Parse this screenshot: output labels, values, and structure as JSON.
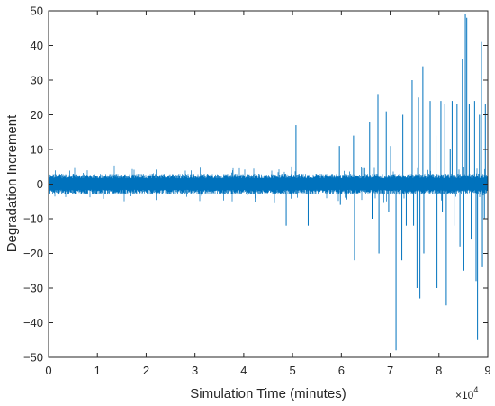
{
  "chart_data": {
    "type": "line",
    "xlabel": "Simulation Time (minutes)",
    "ylabel": "Degradation Increment",
    "xlim": [
      0,
      90000
    ],
    "ylim": [
      -50,
      50
    ],
    "x_ticks": [
      0,
      10000,
      20000,
      30000,
      40000,
      50000,
      60000,
      70000,
      80000,
      90000
    ],
    "x_tick_labels": [
      "0",
      "1",
      "2",
      "3",
      "4",
      "5",
      "6",
      "7",
      "8",
      "9"
    ],
    "x_exponent_label": "×10",
    "x_exponent_power": "4",
    "y_ticks": [
      -50,
      -40,
      -30,
      -20,
      -10,
      0,
      10,
      20,
      30,
      40,
      50
    ],
    "y_tick_labels": [
      "−50",
      "−40",
      "−30",
      "−20",
      "−10",
      "0",
      "10",
      "20",
      "30",
      "40",
      "50"
    ],
    "grid": false,
    "line_color": "#0072BD",
    "baseline_noise": {
      "x_range": [
        0,
        90000
      ],
      "typical_min": -3,
      "typical_max": 3
    },
    "spikes": [
      {
        "x": 48700,
        "y": -12
      },
      {
        "x": 50700,
        "y": 17
      },
      {
        "x": 53200,
        "y": -12
      },
      {
        "x": 59600,
        "y": 11
      },
      {
        "x": 59800,
        "y": -6
      },
      {
        "x": 62500,
        "y": 14
      },
      {
        "x": 62700,
        "y": -22
      },
      {
        "x": 65800,
        "y": 18
      },
      {
        "x": 66300,
        "y": -10
      },
      {
        "x": 67500,
        "y": 26
      },
      {
        "x": 67700,
        "y": -20
      },
      {
        "x": 69200,
        "y": 21
      },
      {
        "x": 69700,
        "y": -8
      },
      {
        "x": 70100,
        "y": 11
      },
      {
        "x": 71200,
        "y": -48
      },
      {
        "x": 72400,
        "y": -22
      },
      {
        "x": 72600,
        "y": 20
      },
      {
        "x": 73300,
        "y": -12
      },
      {
        "x": 74500,
        "y": 30
      },
      {
        "x": 74800,
        "y": -12
      },
      {
        "x": 75500,
        "y": -30
      },
      {
        "x": 75800,
        "y": 25
      },
      {
        "x": 76100,
        "y": -33
      },
      {
        "x": 76700,
        "y": 34
      },
      {
        "x": 76900,
        "y": -20
      },
      {
        "x": 78200,
        "y": 24
      },
      {
        "x": 79400,
        "y": 14
      },
      {
        "x": 79600,
        "y": -30
      },
      {
        "x": 80400,
        "y": 24
      },
      {
        "x": 80700,
        "y": -8
      },
      {
        "x": 81200,
        "y": 23
      },
      {
        "x": 81500,
        "y": -35
      },
      {
        "x": 82300,
        "y": 10
      },
      {
        "x": 82700,
        "y": 24
      },
      {
        "x": 83100,
        "y": -12
      },
      {
        "x": 83700,
        "y": 23
      },
      {
        "x": 84300,
        "y": -18
      },
      {
        "x": 84800,
        "y": 36
      },
      {
        "x": 85100,
        "y": -25
      },
      {
        "x": 85400,
        "y": 49
      },
      {
        "x": 85700,
        "y": 48
      },
      {
        "x": 86200,
        "y": 23
      },
      {
        "x": 86600,
        "y": -16
      },
      {
        "x": 87300,
        "y": 24
      },
      {
        "x": 87600,
        "y": -28
      },
      {
        "x": 87900,
        "y": -45
      },
      {
        "x": 88300,
        "y": 20
      },
      {
        "x": 88700,
        "y": 41
      },
      {
        "x": 88900,
        "y": -24
      },
      {
        "x": 89300,
        "y": -10
      },
      {
        "x": 89500,
        "y": 23
      }
    ]
  }
}
